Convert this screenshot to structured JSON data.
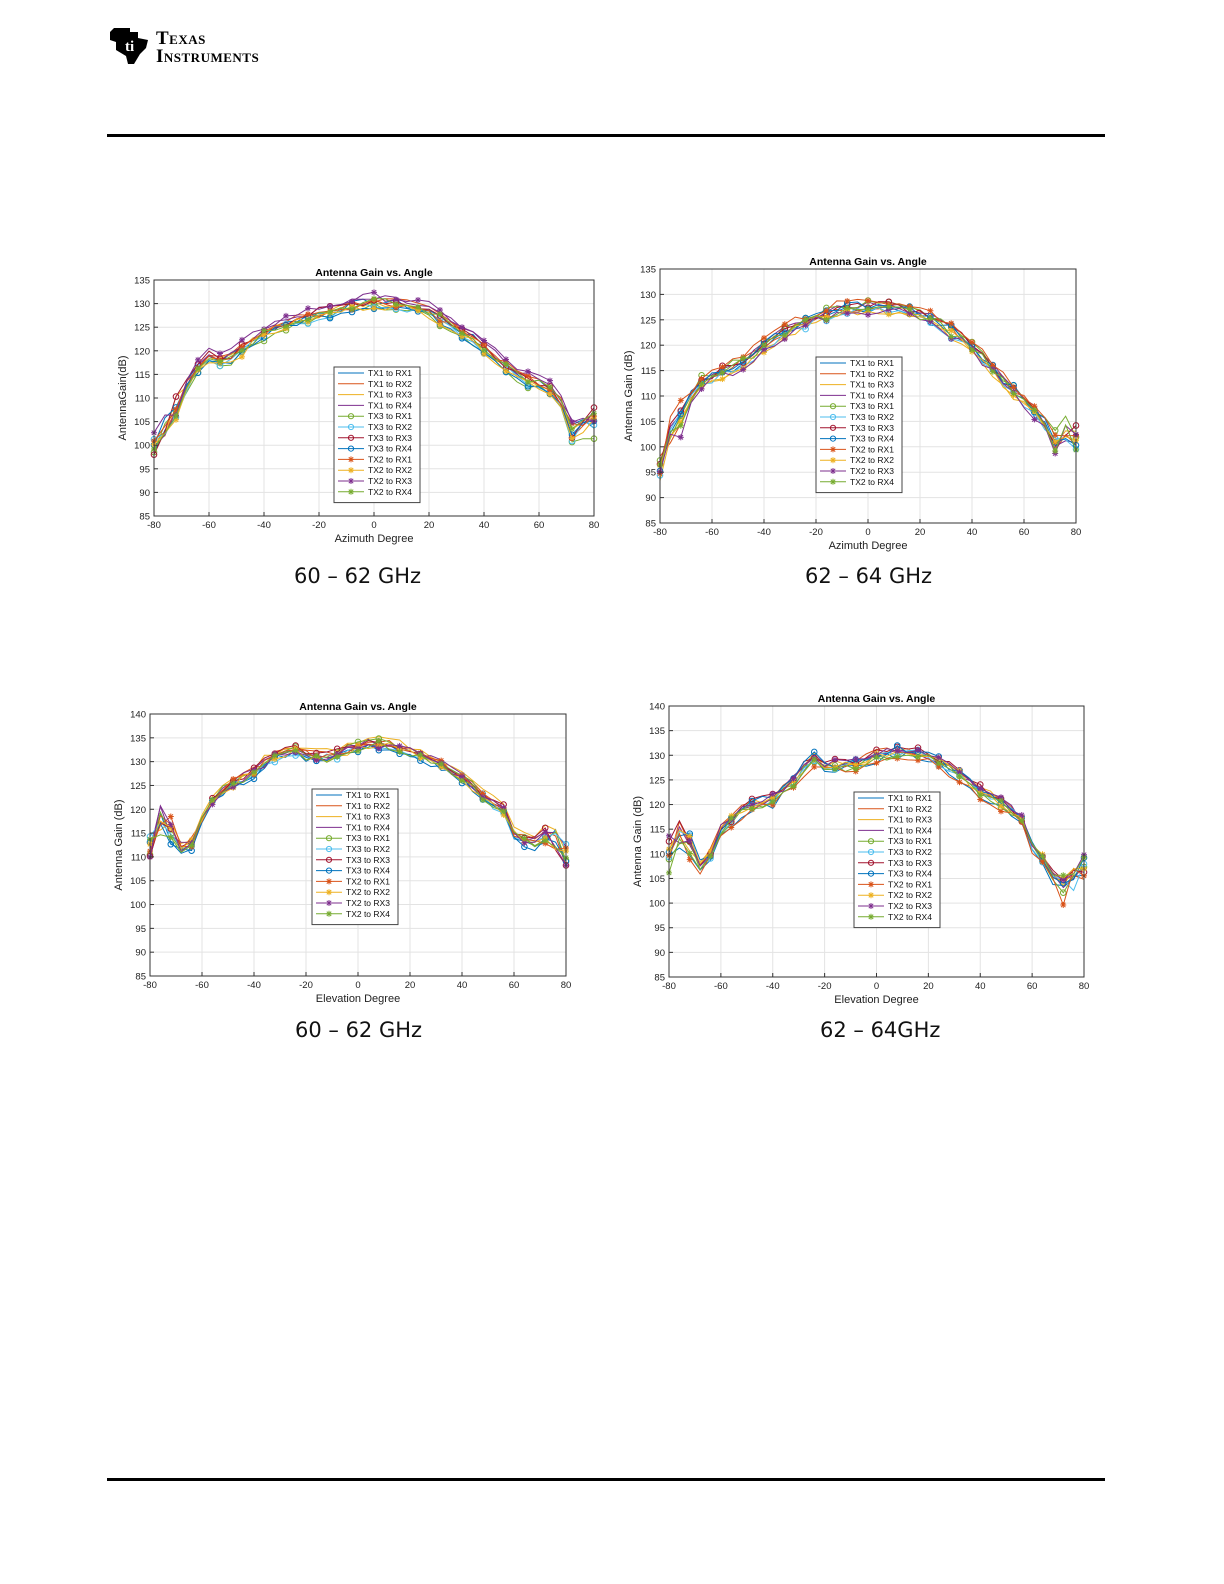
{
  "header": {
    "company_line1": "Texas",
    "company_line2": "Instruments"
  },
  "chart_data": [
    {
      "type": "line",
      "title": "Antenna Gain vs. Angle",
      "xlabel": "Azimuth Degree",
      "ylabel": "AntennaGain(dB)",
      "xlim": [
        -80,
        80
      ],
      "ylim": [
        85,
        135
      ],
      "xticks": [
        -80,
        -60,
        -40,
        -20,
        0,
        20,
        40,
        60,
        80
      ],
      "yticks": [
        85,
        90,
        95,
        100,
        105,
        110,
        115,
        120,
        125,
        130,
        135
      ],
      "caption": "60 – 62 GHz",
      "grid": true,
      "legend": "center-right",
      "profile": {
        "x": [
          -80,
          -76,
          -72,
          -68,
          -64,
          -60,
          -55,
          -50,
          -40,
          -30,
          -20,
          -10,
          0,
          10,
          20,
          30,
          40,
          50,
          56,
          62,
          66,
          70,
          72,
          74,
          76,
          78,
          80
        ],
        "y": [
          100,
          104,
          108,
          113,
          117,
          119,
          118,
          119.5,
          124,
          126.5,
          128,
          129.5,
          130.5,
          130,
          128.5,
          125,
          121,
          116,
          114,
          113,
          111,
          107,
          103,
          101,
          104,
          106,
          105
        ]
      }
    },
    {
      "type": "line",
      "title": "Antenna Gain vs. Angle",
      "xlabel": "Azimuth Degree",
      "ylabel": "Antenna Gain (dB)",
      "xlim": [
        -80,
        80
      ],
      "ylim": [
        85,
        135
      ],
      "xticks": [
        -80,
        -60,
        -40,
        -20,
        0,
        20,
        40,
        60,
        80
      ],
      "yticks": [
        85,
        90,
        95,
        100,
        105,
        110,
        115,
        120,
        125,
        130,
        135
      ],
      "caption": "62 – 64 GHz",
      "grid": true,
      "legend": "center-right",
      "profile": {
        "x": [
          -80,
          -76,
          -72,
          -68,
          -64,
          -60,
          -55,
          -50,
          -40,
          -30,
          -20,
          -10,
          0,
          10,
          20,
          30,
          40,
          50,
          56,
          62,
          66,
          70,
          74,
          76,
          78,
          80
        ],
        "y": [
          96,
          102,
          106,
          110,
          113,
          114,
          115,
          116,
          120,
          123,
          125.5,
          127,
          127.5,
          127.5,
          126,
          123.5,
          120,
          114,
          111,
          108,
          106,
          103,
          100,
          103,
          101,
          102
        ]
      }
    },
    {
      "type": "line",
      "title": "Antenna Gain vs. Angle",
      "xlabel": "Elevation Degree",
      "ylabel": "Antenna Gain (dB)",
      "xlim": [
        -80,
        80
      ],
      "ylim": [
        85,
        140
      ],
      "xticks": [
        -80,
        -60,
        -40,
        -20,
        0,
        20,
        40,
        60,
        80
      ],
      "yticks": [
        85,
        90,
        95,
        100,
        105,
        110,
        115,
        120,
        125,
        130,
        135,
        140
      ],
      "caption": "60 – 62 GHz",
      "grid": true,
      "legend": "center-right",
      "profile": {
        "x": [
          -80,
          -76,
          -72,
          -68,
          -64,
          -60,
          -55,
          -50,
          -40,
          -30,
          -25,
          -20,
          -10,
          0,
          10,
          20,
          30,
          40,
          50,
          56,
          60,
          66,
          70,
          74,
          78,
          80
        ],
        "y": [
          112,
          118,
          116,
          112,
          113,
          118,
          123,
          125,
          128,
          132,
          132.5,
          131.5,
          131,
          133.5,
          134,
          132.5,
          130,
          127,
          122,
          120,
          115,
          113,
          113,
          114,
          114,
          110
        ]
      }
    },
    {
      "type": "line",
      "title": "Antenna Gain vs. Angle",
      "xlabel": "Elevation Degree",
      "ylabel": "Antenna Gain (dB)",
      "xlim": [
        -80,
        80
      ],
      "ylim": [
        85,
        140
      ],
      "xticks": [
        -80,
        -60,
        -40,
        -20,
        0,
        20,
        40,
        60,
        80
      ],
      "yticks": [
        85,
        90,
        95,
        100,
        105,
        110,
        115,
        120,
        125,
        130,
        135,
        140
      ],
      "caption": "62 – 64GHz",
      "grid": true,
      "legend": "center-right",
      "profile": {
        "x": [
          -80,
          -76,
          -72,
          -68,
          -64,
          -60,
          -50,
          -40,
          -30,
          -25,
          -20,
          -10,
          0,
          10,
          20,
          30,
          40,
          50,
          56,
          60,
          66,
          70,
          74,
          78,
          80
        ],
        "y": [
          110,
          114,
          112,
          108,
          110,
          115,
          120,
          121,
          126,
          130,
          128,
          128,
          130,
          131,
          130,
          127,
          123,
          120,
          117,
          112,
          108,
          103,
          104,
          108,
          107
        ]
      }
    }
  ],
  "legend_labels": {
    "chart1": [
      "TX1 to RX1",
      "TX1 to RX2",
      "TX1 to RX3",
      "TX1 to RX4",
      "TX3 to RX1",
      "TX3 to RX2",
      "TX3 to RX3",
      "TX3 to RX4",
      "TX2 to RX1",
      "TX2 to RX2",
      "TX2 to RX3",
      "TX2 to RX4"
    ],
    "chart2": [
      "TX1 to RX1",
      "TX1 to RX2",
      "TX1 to RX3",
      "TX1 to RX4",
      "TX3 to RX1",
      "TX3 to RX2",
      "TX3 to RX3",
      "TX3 to RX4",
      "TX2 to RX1",
      "TX2 to RX2",
      "TX2 to RX3",
      "TX2 to RX4"
    ],
    "chart3": [
      "TX1 to RX1",
      "TX1 to RX2",
      "TX1 to RX3",
      "TX1 to RX4",
      "TX3 to RX1",
      "TX3 to RX2",
      "TX3 to RX3",
      "TX3 to RX4",
      "TX2 to RX1",
      "TX2 to RX2",
      "TX2 to RX3",
      "TX2 to RX4"
    ],
    "chart4": [
      "TX1 to RX1",
      "TX1 to RX2",
      "TX1 to RX3",
      "TX1 to RX4",
      "TX3 to RX1",
      "TX3 to RX2",
      "TX3 to RX3",
      "TX3 to RX4",
      "TX2 to RX1",
      "TX2 to RX2",
      "TX2 to RX3",
      "TX2 to RX4"
    ]
  },
  "series_style": {
    "colors": [
      "#0072bd",
      "#d95319",
      "#edb120",
      "#7e2f8e",
      "#77ac30",
      "#4dbeee",
      "#a2142f",
      "#0072bd",
      "#d95319",
      "#edb120",
      "#7e2f8e",
      "#77ac30"
    ],
    "markers": [
      "none",
      "none",
      "none",
      "none",
      "circle",
      "circle",
      "circle",
      "circle",
      "asterisk",
      "asterisk",
      "asterisk",
      "asterisk"
    ]
  }
}
